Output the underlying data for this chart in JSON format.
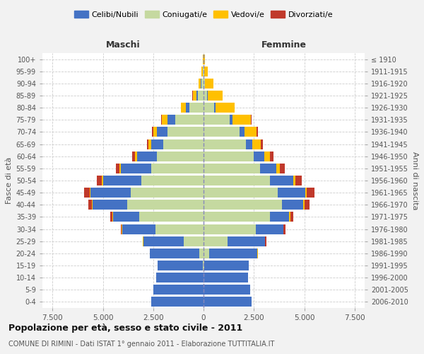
{
  "age_groups": [
    "0-4",
    "5-9",
    "10-14",
    "15-19",
    "20-24",
    "25-29",
    "30-34",
    "35-39",
    "40-44",
    "45-49",
    "50-54",
    "55-59",
    "60-64",
    "65-69",
    "70-74",
    "75-79",
    "80-84",
    "85-89",
    "90-94",
    "95-99",
    "100+"
  ],
  "birth_years": [
    "2006-2010",
    "2001-2005",
    "1996-2000",
    "1991-1995",
    "1986-1990",
    "1981-1985",
    "1976-1980",
    "1971-1975",
    "1966-1970",
    "1961-1965",
    "1956-1960",
    "1951-1955",
    "1946-1950",
    "1941-1945",
    "1936-1940",
    "1931-1935",
    "1926-1930",
    "1921-1925",
    "1916-1920",
    "1911-1915",
    "≤ 1910"
  ],
  "colors": {
    "celibi": "#4472c4",
    "coniugati": "#c5d9a0",
    "vedovi": "#ffc000",
    "divorziati": "#c0392b"
  },
  "maschi": {
    "coniugati": [
      0,
      0,
      0,
      20,
      200,
      1000,
      2400,
      3200,
      3800,
      3600,
      3100,
      2600,
      2300,
      2000,
      1800,
      1400,
      700,
      280,
      90,
      25,
      3
    ],
    "celibi": [
      2600,
      2500,
      2350,
      2250,
      2450,
      2000,
      1650,
      1300,
      1700,
      2000,
      1900,
      1500,
      1000,
      600,
      500,
      380,
      160,
      80,
      40,
      15,
      3
    ],
    "vedovi": [
      0,
      0,
      0,
      0,
      5,
      10,
      20,
      25,
      35,
      45,
      55,
      75,
      100,
      130,
      200,
      280,
      250,
      180,
      110,
      55,
      15
    ],
    "divorziati": [
      0,
      0,
      0,
      0,
      10,
      25,
      50,
      90,
      190,
      280,
      230,
      190,
      140,
      90,
      65,
      35,
      15,
      5,
      2,
      1,
      0
    ]
  },
  "femmine": {
    "coniugate": [
      0,
      0,
      0,
      30,
      280,
      1200,
      2600,
      3300,
      3900,
      3700,
      3300,
      2800,
      2500,
      2100,
      1800,
      1300,
      520,
      180,
      60,
      18,
      2
    ],
    "nubili": [
      2400,
      2300,
      2200,
      2200,
      2400,
      1850,
      1350,
      950,
      1050,
      1350,
      1150,
      800,
      530,
      320,
      240,
      140,
      60,
      35,
      18,
      8,
      2
    ],
    "vedove": [
      0,
      0,
      0,
      0,
      5,
      12,
      25,
      50,
      70,
      90,
      120,
      190,
      280,
      420,
      600,
      900,
      950,
      720,
      410,
      190,
      55
    ],
    "divorziate": [
      0,
      0,
      0,
      0,
      12,
      45,
      90,
      140,
      260,
      360,
      290,
      230,
      170,
      100,
      65,
      35,
      12,
      3,
      1,
      0,
      0
    ]
  },
  "title": "Popolazione per età, sesso e stato civile - 2011",
  "subtitle": "COMUNE DI RIMINI - Dati ISTAT 1° gennaio 2011 - Elaborazione TUTTITALIA.IT",
  "xlabel_left": "Maschi",
  "xlabel_right": "Femmine",
  "ylabel": "Fasce di età",
  "ylabel_right": "Anni di nascita",
  "legend_labels": [
    "Celibi/Nubili",
    "Coniugati/e",
    "Vedovi/e",
    "Divorziati/e"
  ],
  "xticks": [
    -7500,
    -5000,
    -2500,
    0,
    2500,
    5000,
    7500
  ],
  "xtick_labels": [
    "7.500",
    "5.000",
    "2.500",
    "0",
    "2.500",
    "5.000",
    "7.500"
  ],
  "bg_color": "#f2f2f2",
  "plot_bg": "#ffffff"
}
